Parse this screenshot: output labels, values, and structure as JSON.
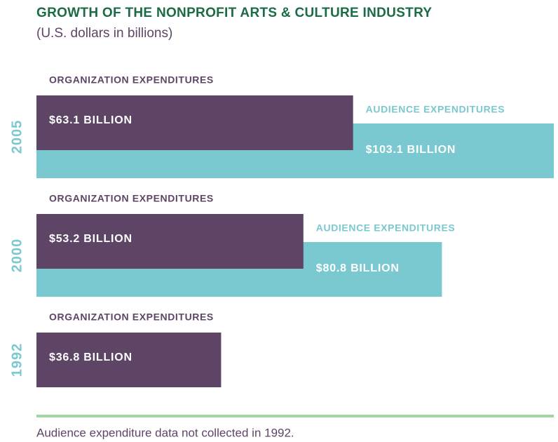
{
  "chart_data": {
    "type": "overlapping-bar",
    "title": "GROWTH OF THE NONPROFIT ARTS & CULTURE INDUSTRY",
    "subtitle": "(U.S. dollars in billions)",
    "categories": [
      "2005",
      "2000",
      "1992"
    ],
    "series": [
      {
        "name": "ORGANIZATION EXPENDITURES",
        "color": "#5e4566",
        "values": [
          63.1,
          53.2,
          36.8
        ],
        "value_labels": [
          "$63.1 BILLION",
          "$53.2 BILLION",
          "$36.8 BILLION"
        ]
      },
      {
        "name": "AUDIENCE EXPENDITURES",
        "color": "#7ac8d0",
        "values": [
          103.1,
          80.8,
          null
        ],
        "value_labels": [
          "$103.1 BILLION",
          "$80.8 BILLION",
          null
        ]
      }
    ],
    "note": "Audience expenditure data not collected in 1992."
  }
}
